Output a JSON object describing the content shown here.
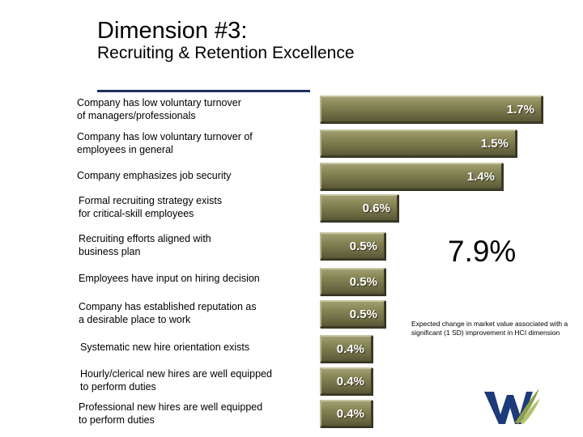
{
  "title": "Dimension #3:",
  "subtitle": "Recruiting & Retention Excellence",
  "total_value": "7.9%",
  "footnote": "Expected change in market value associated with a significant (1 SD) improvement in HCI dimension",
  "colors": {
    "bar": "#7c7b4f",
    "rule": "#1d2f5e",
    "logo_blue": "#1d3a7a",
    "logo_green": "#8ea04e"
  },
  "chart_data": {
    "type": "bar",
    "orientation": "horizontal",
    "title": "Dimension #3: Recruiting & Retention Excellence",
    "xlabel": "",
    "ylabel": "",
    "unit": "%",
    "xlim": [
      0,
      1.7
    ],
    "categories": [
      "Company has low voluntary turnover of managers/professionals",
      "Company has low voluntary turnover of employees in general",
      "Company emphasizes job security",
      "Formal recruiting strategy exists for critical-skill employees",
      "Recruiting efforts aligned with business plan",
      "Employees have input on hiring decision",
      "Company has established reputation as a desirable place to work",
      "Systematic new hire orientation exists",
      "Hourly/clerical new hires are well equipped to perform duties",
      "Professional new hires are well equipped to perform duties"
    ],
    "values": [
      1.7,
      1.5,
      1.4,
      0.6,
      0.5,
      0.5,
      0.5,
      0.4,
      0.4,
      0.4
    ],
    "value_labels": [
      "1.7%",
      "1.5%",
      "1.4%",
      "0.6%",
      "0.5%",
      "0.5%",
      "0.5%",
      "0.4%",
      "0.4%",
      "0.4%"
    ],
    "label_lines": [
      [
        "Company has low voluntary turnover",
        "of managers/professionals"
      ],
      [
        "Company has low voluntary turnover of",
        "employees in general"
      ],
      [
        "Company emphasizes job security"
      ],
      [
        "Formal recruiting strategy exists",
        "for critical-skill employees"
      ],
      [
        "Recruiting efforts aligned with",
        "business plan"
      ],
      [
        "Employees have input on hiring decision"
      ],
      [
        "Company has established reputation as",
        "a desirable place to work"
      ],
      [
        "Systematic new hire orientation exists"
      ],
      [
        "Hourly/clerical new hires are well equipped",
        "to perform duties"
      ],
      [
        "Professional new hires are well equipped",
        "to perform duties"
      ]
    ]
  }
}
